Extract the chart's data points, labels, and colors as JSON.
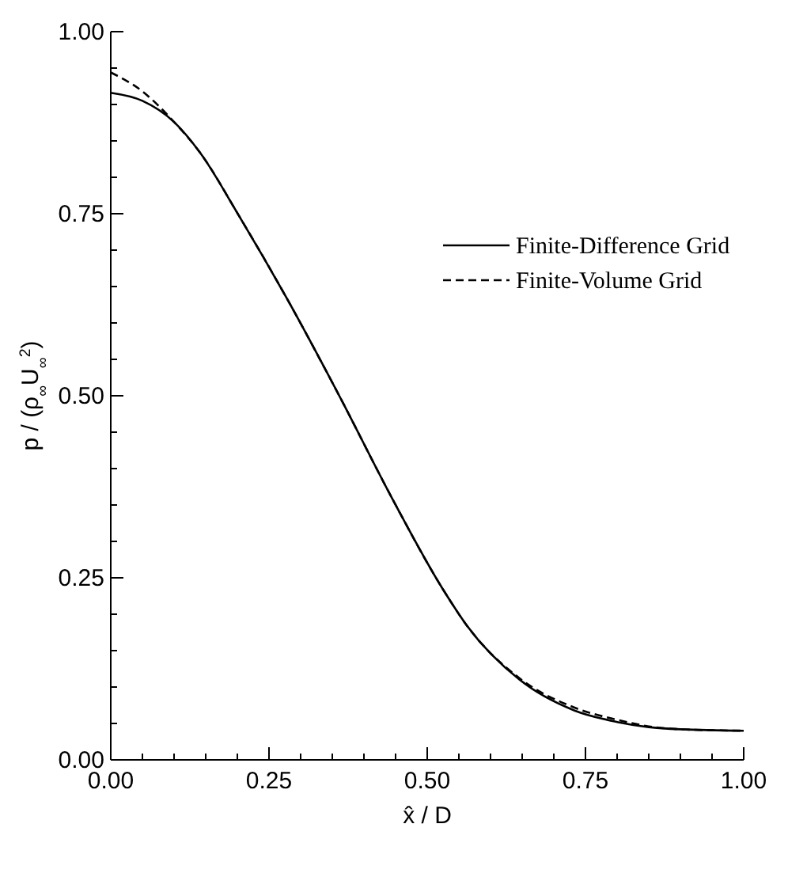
{
  "chart_data": {
    "type": "line",
    "xlabel": "x̂ / D",
    "ylabel": "p / (ρ$_{∞}$U$_{∞}$$^{2}$)",
    "series": [
      {
        "name": "Finite-Difference Grid",
        "color": "#000000",
        "line_style": "solid",
        "x": [
          0,
          0.05,
          0.1,
          0.141,
          0.202,
          0.278,
          0.361,
          0.444,
          0.525,
          0.563,
          0.646,
          0.732,
          0.8,
          0.85,
          0.9,
          1.0
        ],
        "values": [
          0.916,
          0.905,
          0.876,
          0.834,
          0.748,
          0.634,
          0.5,
          0.36,
          0.234,
          0.184,
          0.11,
          0.068,
          0.052,
          0.045,
          0.042,
          0.04
        ]
      },
      {
        "name": "Finite-Volume Grid",
        "color": "#000000",
        "line_style": "dashed",
        "x": [
          0,
          0.05,
          0.1,
          0.141,
          0.202,
          0.278,
          0.361,
          0.444,
          0.525,
          0.563,
          0.646,
          0.732,
          0.8,
          0.85,
          0.9,
          1.0
        ],
        "values": [
          0.944,
          0.918,
          0.876,
          0.834,
          0.748,
          0.634,
          0.5,
          0.36,
          0.234,
          0.184,
          0.112,
          0.072,
          0.055,
          0.046,
          0.042,
          0.04
        ]
      }
    ],
    "xlim": [
      0,
      1
    ],
    "ylim": [
      0,
      1
    ],
    "xticks": [
      {
        "value": 0,
        "label": "0.00"
      },
      {
        "value": 0.05,
        "label": null
      },
      {
        "value": 0.1,
        "label": null
      },
      {
        "value": 0.15,
        "label": null
      },
      {
        "value": 0.2,
        "label": null
      },
      {
        "value": 0.25,
        "label": "0.25"
      },
      {
        "value": 0.3,
        "label": null
      },
      {
        "value": 0.35,
        "label": null
      },
      {
        "value": 0.4,
        "label": null
      },
      {
        "value": 0.45,
        "label": null
      },
      {
        "value": 0.5,
        "label": "0.50"
      },
      {
        "value": 0.55,
        "label": null
      },
      {
        "value": 0.6,
        "label": null
      },
      {
        "value": 0.65,
        "label": null
      },
      {
        "value": 0.7,
        "label": null
      },
      {
        "value": 0.75,
        "label": "0.75"
      },
      {
        "value": 0.8,
        "label": null
      },
      {
        "value": 0.85,
        "label": null
      },
      {
        "value": 0.9,
        "label": null
      },
      {
        "value": 0.95,
        "label": null
      },
      {
        "value": 1,
        "label": "1.00"
      }
    ],
    "yticks": [
      {
        "value": 0,
        "label": "0.00"
      },
      {
        "value": 0.05,
        "label": null
      },
      {
        "value": 0.1,
        "label": null
      },
      {
        "value": 0.15,
        "label": null
      },
      {
        "value": 0.2,
        "label": null
      },
      {
        "value": 0.25,
        "label": "0.25"
      },
      {
        "value": 0.3,
        "label": null
      },
      {
        "value": 0.35,
        "label": null
      },
      {
        "value": 0.4,
        "label": null
      },
      {
        "value": 0.45,
        "label": null
      },
      {
        "value": 0.5,
        "label": "0.50"
      },
      {
        "value": 0.55,
        "label": null
      },
      {
        "value": 0.6,
        "label": null
      },
      {
        "value": 0.65,
        "label": null
      },
      {
        "value": 0.7,
        "label": null
      },
      {
        "value": 0.75,
        "label": "0.75"
      },
      {
        "value": 0.8,
        "label": null
      },
      {
        "value": 0.85,
        "label": null
      },
      {
        "value": 0.9,
        "label": null
      },
      {
        "value": 0.95,
        "label": null
      },
      {
        "value": 1,
        "label": "1.00"
      }
    ],
    "legend": "top right",
    "grid": false
  }
}
